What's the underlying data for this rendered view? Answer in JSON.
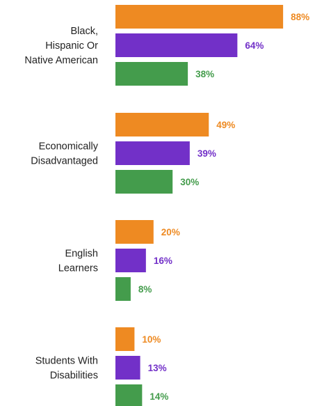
{
  "chart_data": {
    "type": "bar",
    "orientation": "horizontal",
    "value_suffix": "%",
    "categories": [
      [
        "Black,",
        "Hispanic Or",
        "Native American"
      ],
      [
        "Economically",
        "Disadvantaged"
      ],
      [
        "English",
        "Learners"
      ],
      [
        "Students With",
        "Disabilities"
      ]
    ],
    "series": [
      {
        "color": "#ee8a22",
        "values": [
          88,
          49,
          20,
          10
        ]
      },
      {
        "color": "#7230c8",
        "values": [
          64,
          39,
          16,
          13
        ]
      },
      {
        "color": "#449c4c",
        "values": [
          38,
          30,
          8,
          14
        ]
      }
    ],
    "xlim": [
      0,
      100
    ],
    "grid": false,
    "legend": "none"
  }
}
